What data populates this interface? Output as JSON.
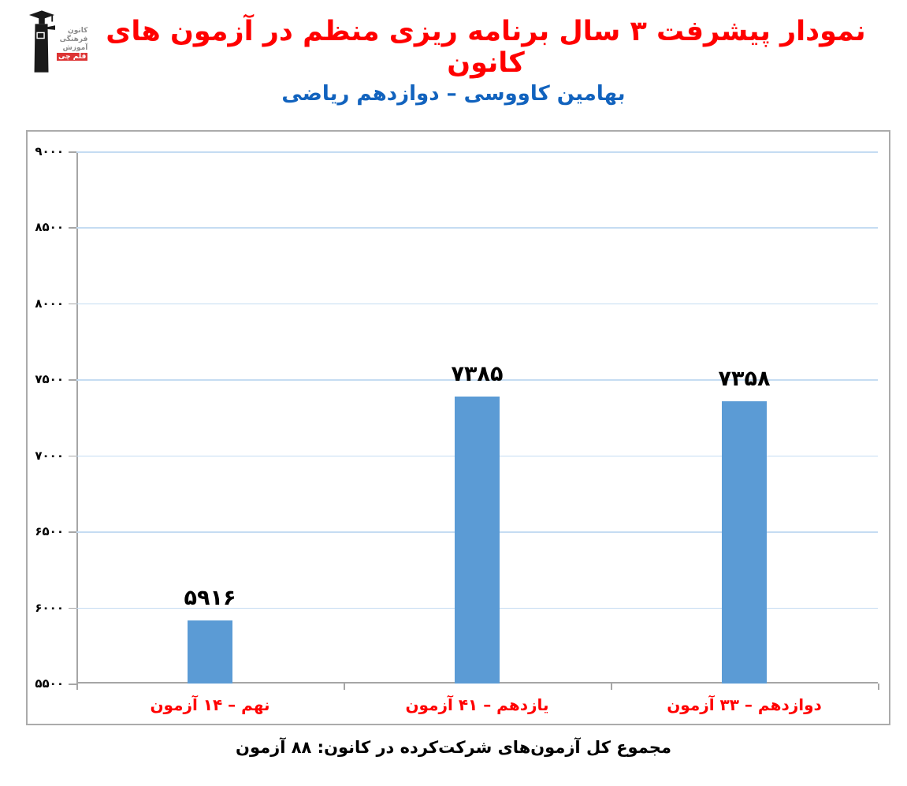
{
  "header": {
    "title": "نمودار پیشرفت ۳ سال برنامه ریزی منظم در آزمون های کانون",
    "subtitle": "بهامین کاووسی – دوازدهم ریاضی",
    "logo": {
      "lines": [
        "کانون",
        "فرهنگی",
        "آموزش",
        "قلم چی"
      ]
    }
  },
  "chart_data": {
    "type": "bar",
    "title": "نمودار پیشرفت ۳ سال برنامه ریزی منظم در آزمون های کانون",
    "subtitle": "بهامین کاووسی – دوازدهم ریاضی",
    "categories": [
      "نهم – ۱۴ آزمون",
      "یازدهم – ۴۱ آزمون",
      "دوازدهم – ۳۳ آزمون"
    ],
    "values": [
      5916,
      7385,
      7358
    ],
    "value_labels": [
      "۵۹۱۶",
      "۷۳۸۵",
      "۷۳۵۸"
    ],
    "xlabel": "",
    "ylabel": "",
    "ylim": [
      5500,
      9000
    ],
    "y_tick_step": 500,
    "grid": true,
    "legend": false,
    "y_ticks": [
      {
        "value": 9000,
        "label": "۹۰۰۰"
      },
      {
        "value": 8500,
        "label": "۸۵۰۰"
      },
      {
        "value": 8000,
        "label": "۸۰۰۰"
      },
      {
        "value": 7500,
        "label": "۷۵۰۰"
      },
      {
        "value": 7000,
        "label": "۷۰۰۰"
      },
      {
        "value": 6500,
        "label": "۶۵۰۰"
      },
      {
        "value": 6000,
        "label": "۶۰۰۰"
      },
      {
        "value": 5500,
        "label": "۵۵۰۰"
      }
    ]
  },
  "footer": {
    "caption": "مجموع کل آزمون‌های شرکت‌کرده در کانون:  ۸۸ آزمون"
  },
  "colors": {
    "title_red": "#FF0000",
    "subtitle_blue": "#1263BE",
    "category_label_red": "#FF0000",
    "bar_blue": "#5B9BD5",
    "gridline_blue": "#C5DCF2",
    "axis_gray": "#A6A6A6",
    "frame_border_gray": "#ABABAB",
    "logo_text_gray": "#8C8C8C",
    "logo_red": "#DD3434",
    "data_label_black": "#000000"
  }
}
